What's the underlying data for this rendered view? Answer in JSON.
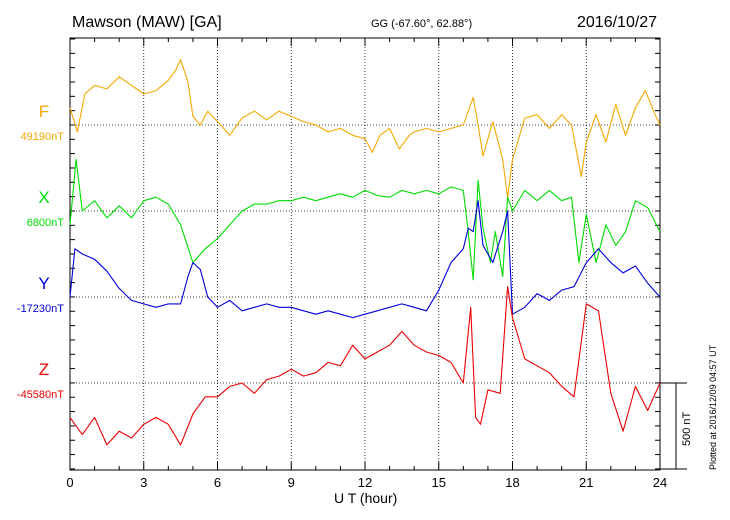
{
  "header": {
    "station": "Mawson (MAW)  [GA]",
    "coords": "GG (-67.60°,  62.88°)",
    "date": "2016/10/27"
  },
  "footer": {
    "xlabel": "U T (hour)",
    "plotted": "Plotted at 2016/12/09 04:57 UT"
  },
  "scale_label": "500 nT",
  "chart_data": {
    "type": "line",
    "title": "Mawson (MAW)  [GA]",
    "xlabel": "U T (hour)",
    "ylabel": "",
    "x_range": [
      0,
      24
    ],
    "x_ticks": [
      0,
      3,
      6,
      9,
      12,
      15,
      18,
      21,
      24
    ],
    "scale_bar_nT": 500,
    "grid": "dotted baselines",
    "series": [
      {
        "name": "F",
        "color": "#f5a800",
        "baseline_label": "49190nT",
        "baseline_nT": 49190,
        "points": [
          [
            0,
            100
          ],
          [
            0.3,
            -40
          ],
          [
            0.6,
            180
          ],
          [
            1,
            230
          ],
          [
            1.5,
            210
          ],
          [
            2,
            280
          ],
          [
            2.5,
            230
          ],
          [
            3,
            180
          ],
          [
            3.5,
            200
          ],
          [
            4,
            260
          ],
          [
            4.3,
            320
          ],
          [
            4.5,
            380
          ],
          [
            4.8,
            250
          ],
          [
            5,
            50
          ],
          [
            5.3,
            0
          ],
          [
            5.6,
            80
          ],
          [
            6,
            20
          ],
          [
            6.5,
            -60
          ],
          [
            7,
            40
          ],
          [
            7.5,
            80
          ],
          [
            8,
            30
          ],
          [
            8.5,
            80
          ],
          [
            9,
            50
          ],
          [
            9.5,
            20
          ],
          [
            10,
            0
          ],
          [
            10.5,
            -40
          ],
          [
            11,
            -20
          ],
          [
            11.5,
            -60
          ],
          [
            12,
            -80
          ],
          [
            12.3,
            -160
          ],
          [
            12.6,
            -60
          ],
          [
            13,
            -20
          ],
          [
            13.4,
            -140
          ],
          [
            13.8,
            -60
          ],
          [
            14,
            -40
          ],
          [
            14.5,
            -20
          ],
          [
            15,
            -40
          ],
          [
            15.5,
            -20
          ],
          [
            16,
            0
          ],
          [
            16.4,
            160
          ],
          [
            16.6,
            0
          ],
          [
            16.8,
            -180
          ],
          [
            17.2,
            20
          ],
          [
            17.6,
            -200
          ],
          [
            17.8,
            -420
          ],
          [
            18,
            -200
          ],
          [
            18.5,
            40
          ],
          [
            19,
            60
          ],
          [
            19.5,
            -20
          ],
          [
            20,
            60
          ],
          [
            20.4,
            0
          ],
          [
            20.8,
            -300
          ],
          [
            21,
            -100
          ],
          [
            21.4,
            60
          ],
          [
            21.8,
            -100
          ],
          [
            22.2,
            120
          ],
          [
            22.6,
            -60
          ],
          [
            23,
            100
          ],
          [
            23.4,
            200
          ],
          [
            23.8,
            60
          ],
          [
            24,
            0
          ]
        ]
      },
      {
        "name": "X",
        "color": "#00dd00",
        "baseline_label": "6800nT",
        "baseline_nT": 6800,
        "points": [
          [
            0,
            -80
          ],
          [
            0.25,
            300
          ],
          [
            0.5,
            0
          ],
          [
            1,
            60
          ],
          [
            1.5,
            -40
          ],
          [
            2,
            30
          ],
          [
            2.5,
            -40
          ],
          [
            3,
            60
          ],
          [
            3.5,
            80
          ],
          [
            4,
            40
          ],
          [
            4.5,
            -80
          ],
          [
            5,
            -300
          ],
          [
            5.5,
            -220
          ],
          [
            6,
            -160
          ],
          [
            6.5,
            -80
          ],
          [
            7,
            0
          ],
          [
            7.5,
            40
          ],
          [
            8,
            40
          ],
          [
            8.5,
            60
          ],
          [
            9,
            60
          ],
          [
            9.5,
            80
          ],
          [
            10,
            60
          ],
          [
            10.5,
            80
          ],
          [
            11,
            100
          ],
          [
            11.5,
            80
          ],
          [
            12,
            120
          ],
          [
            12.5,
            90
          ],
          [
            13,
            80
          ],
          [
            13.5,
            120
          ],
          [
            14,
            100
          ],
          [
            14.5,
            120
          ],
          [
            15,
            100
          ],
          [
            15.5,
            140
          ],
          [
            16,
            120
          ],
          [
            16.2,
            -120
          ],
          [
            16.4,
            -400
          ],
          [
            16.6,
            180
          ],
          [
            16.8,
            -100
          ],
          [
            17.1,
            -300
          ],
          [
            17.3,
            -120
          ],
          [
            17.6,
            -380
          ],
          [
            17.8,
            80
          ],
          [
            18,
            0
          ],
          [
            18.5,
            120
          ],
          [
            19,
            60
          ],
          [
            19.5,
            120
          ],
          [
            20,
            60
          ],
          [
            20.4,
            80
          ],
          [
            20.7,
            -300
          ],
          [
            21,
            -20
          ],
          [
            21.4,
            -300
          ],
          [
            21.8,
            -80
          ],
          [
            22.2,
            -200
          ],
          [
            22.6,
            -120
          ],
          [
            23,
            60
          ],
          [
            23.5,
            20
          ],
          [
            24,
            -120
          ]
        ]
      },
      {
        "name": "Y",
        "color": "#0000dd",
        "baseline_label": "-17230nT",
        "baseline_nT": -17230,
        "points": [
          [
            0,
            0
          ],
          [
            0.2,
            280
          ],
          [
            0.5,
            250
          ],
          [
            1,
            220
          ],
          [
            1.5,
            150
          ],
          [
            2,
            50
          ],
          [
            2.5,
            -20
          ],
          [
            3,
            -40
          ],
          [
            3.5,
            -60
          ],
          [
            4,
            -40
          ],
          [
            4.5,
            -40
          ],
          [
            4.8,
            120
          ],
          [
            5,
            200
          ],
          [
            5.3,
            160
          ],
          [
            5.6,
            0
          ],
          [
            6,
            -60
          ],
          [
            6.5,
            -20
          ],
          [
            7,
            -80
          ],
          [
            7.5,
            -60
          ],
          [
            8,
            -40
          ],
          [
            8.5,
            -60
          ],
          [
            9,
            -60
          ],
          [
            9.5,
            -80
          ],
          [
            10,
            -100
          ],
          [
            10.5,
            -80
          ],
          [
            11,
            -100
          ],
          [
            11.5,
            -120
          ],
          [
            12,
            -100
          ],
          [
            12.5,
            -80
          ],
          [
            13,
            -60
          ],
          [
            13.5,
            -40
          ],
          [
            14,
            -60
          ],
          [
            14.5,
            -80
          ],
          [
            15,
            40
          ],
          [
            15.5,
            200
          ],
          [
            16,
            280
          ],
          [
            16.2,
            400
          ],
          [
            16.4,
            380
          ],
          [
            16.6,
            560
          ],
          [
            16.8,
            300
          ],
          [
            17.2,
            200
          ],
          [
            17.6,
            380
          ],
          [
            17.8,
            500
          ],
          [
            18,
            -100
          ],
          [
            18.5,
            -60
          ],
          [
            19,
            20
          ],
          [
            19.5,
            -20
          ],
          [
            20,
            40
          ],
          [
            20.5,
            60
          ],
          [
            21,
            200
          ],
          [
            21.5,
            280
          ],
          [
            22,
            200
          ],
          [
            22.5,
            140
          ],
          [
            23,
            180
          ],
          [
            23.5,
            80
          ],
          [
            24,
            0
          ]
        ]
      },
      {
        "name": "Z",
        "color": "#ee0000",
        "baseline_label": "-45580nT",
        "baseline_nT": -45580,
        "points": [
          [
            0,
            -200
          ],
          [
            0.5,
            -300
          ],
          [
            1,
            -200
          ],
          [
            1.5,
            -360
          ],
          [
            2,
            -280
          ],
          [
            2.5,
            -320
          ],
          [
            3,
            -240
          ],
          [
            3.5,
            -200
          ],
          [
            4,
            -240
          ],
          [
            4.5,
            -360
          ],
          [
            5,
            -180
          ],
          [
            5.5,
            -80
          ],
          [
            6,
            -80
          ],
          [
            6.5,
            -20
          ],
          [
            7,
            0
          ],
          [
            7.5,
            -60
          ],
          [
            8,
            20
          ],
          [
            8.5,
            40
          ],
          [
            9,
            80
          ],
          [
            9.5,
            40
          ],
          [
            10,
            60
          ],
          [
            10.5,
            120
          ],
          [
            11,
            100
          ],
          [
            11.5,
            220
          ],
          [
            12,
            140
          ],
          [
            12.5,
            180
          ],
          [
            13,
            220
          ],
          [
            13.5,
            300
          ],
          [
            14,
            220
          ],
          [
            14.5,
            180
          ],
          [
            15,
            160
          ],
          [
            15.5,
            120
          ],
          [
            16,
            0
          ],
          [
            16.3,
            440
          ],
          [
            16.5,
            -200
          ],
          [
            16.7,
            -240
          ],
          [
            17,
            -40
          ],
          [
            17.5,
            -60
          ],
          [
            17.8,
            560
          ],
          [
            18,
            380
          ],
          [
            18.5,
            140
          ],
          [
            19,
            100
          ],
          [
            19.5,
            60
          ],
          [
            20,
            -20
          ],
          [
            20.5,
            -80
          ],
          [
            21,
            460
          ],
          [
            21.5,
            420
          ],
          [
            22,
            -60
          ],
          [
            22.5,
            -280
          ],
          [
            23,
            -20
          ],
          [
            23.5,
            -160
          ],
          [
            24,
            0
          ]
        ]
      }
    ]
  }
}
